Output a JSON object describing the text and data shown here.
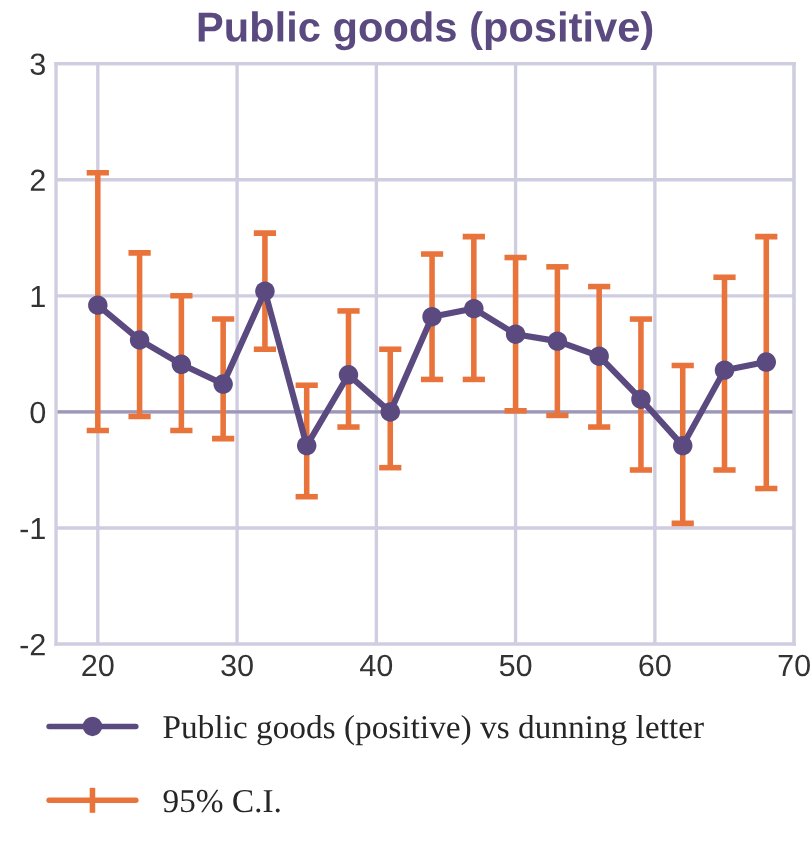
{
  "chart_data": {
    "type": "line",
    "title": "Public goods (positive)",
    "x": [
      20,
      23,
      26,
      29,
      32,
      35,
      38,
      41,
      44,
      47,
      50,
      53,
      56,
      59,
      62,
      65,
      68
    ],
    "series": [
      {
        "name": "Public goods (positive) vs dunning letter",
        "color": "#5b4a7f",
        "values": [
          0.92,
          0.62,
          0.41,
          0.24,
          1.04,
          -0.29,
          0.32,
          0.0,
          0.82,
          0.89,
          0.67,
          0.61,
          0.48,
          0.11,
          -0.29,
          0.36,
          0.43
        ],
        "errors": [
          [
            -0.16,
            2.06
          ],
          [
            -0.04,
            1.37
          ],
          [
            -0.16,
            1.0
          ],
          [
            -0.23,
            0.8
          ],
          [
            0.54,
            1.54
          ],
          [
            -0.73,
            0.23
          ],
          [
            -0.13,
            0.87
          ],
          [
            -0.48,
            0.54
          ],
          [
            0.28,
            1.36
          ],
          [
            0.28,
            1.51
          ],
          [
            0.01,
            1.33
          ],
          [
            -0.03,
            1.25
          ],
          [
            -0.13,
            1.08
          ],
          [
            -0.5,
            0.8
          ],
          [
            -0.96,
            0.4
          ],
          [
            -0.5,
            1.16
          ],
          [
            -0.66,
            1.51
          ]
        ]
      }
    ],
    "annotations": [
      "95% C.I."
    ],
    "xlim": [
      17,
      70
    ],
    "xticks": [
      20,
      30,
      40,
      50,
      60,
      70
    ],
    "ylim": [
      -2,
      3
    ],
    "yticks": [
      -2,
      -1,
      0,
      1,
      2,
      3
    ],
    "grid": true,
    "legend": "bottom",
    "marker": "circle",
    "line_style": "solid"
  }
}
